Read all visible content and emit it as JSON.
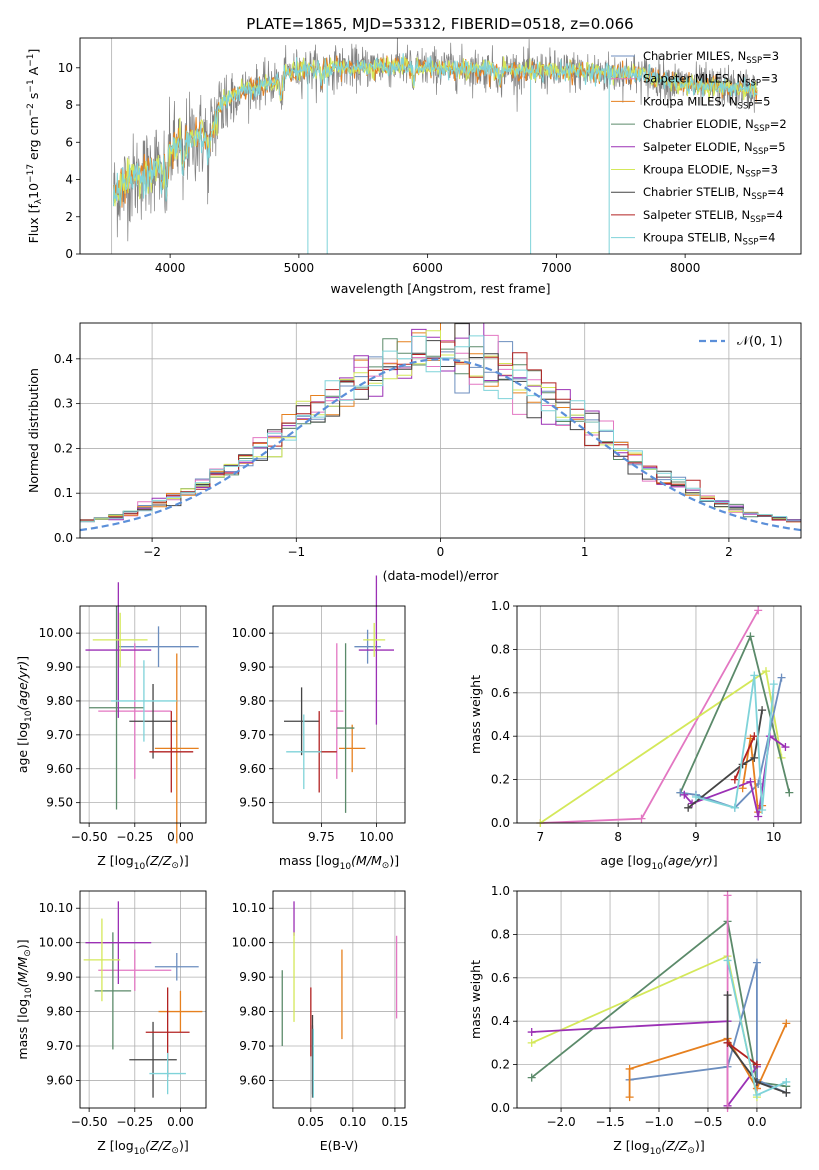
{
  "figure": {
    "title": "PLATE=1865, MJD=53312, FIBERID=0518, z=0.066"
  },
  "colors": {
    "chabrier_miles": "#6c8ebf",
    "salpeter_miles": "#e377c2",
    "kroupa_miles": "#e6801f",
    "chabrier_elodie": "#5b8a6a",
    "salpeter_elodie": "#9b30b5",
    "kroupa_elodie": "#d4e85a",
    "chabrier_stelib": "#444444",
    "salpeter_stelib": "#b22222",
    "kroupa_stelib": "#7fd3d9",
    "data": "#808080"
  },
  "chart_data": [
    {
      "id": "spectrum",
      "type": "line",
      "xlabel": "wavelength [Angstrom, rest frame]",
      "ylabel_parts": [
        "Flux [f",
        "λ",
        "10",
        "−17",
        " erg cm",
        "−2",
        " s",
        "−1",
        " A",
        "−1",
        "]"
      ],
      "xlim": [
        3300,
        8900
      ],
      "ylim": [
        0,
        11.6
      ],
      "xticks": [
        4000,
        5000,
        6000,
        7000,
        8000
      ],
      "yticks": [
        0,
        2,
        4,
        6,
        8,
        10
      ],
      "legend_position": "top-right",
      "legend": [
        {
          "model": "Chabrier MILES, N",
          "n": 3,
          "color_key": "chabrier_miles"
        },
        {
          "model": "Salpeter MILES, N",
          "n": 3,
          "color_key": "salpeter_miles"
        },
        {
          "model": "Kroupa MILES, N",
          "n": 5,
          "color_key": "kroupa_miles"
        },
        {
          "model": "Chabrier ELODIE, N",
          "n": 2,
          "color_key": "chabrier_elodie"
        },
        {
          "model": "Salpeter ELODIE, N",
          "n": 5,
          "color_key": "salpeter_elodie"
        },
        {
          "model": "Kroupa ELODIE, N",
          "n": 3,
          "color_key": "kroupa_elodie"
        },
        {
          "model": "Chabrier STELIB, N",
          "n": 4,
          "color_key": "chabrier_stelib"
        },
        {
          "model": "Salpeter STELIB, N",
          "n": 4,
          "color_key": "salpeter_stelib"
        },
        {
          "model": "Kroupa STELIB, N",
          "n": 4,
          "color_key": "kroupa_stelib"
        }
      ],
      "legend_subscript": "SSP",
      "continuum": [
        [
          3560,
          3.2
        ],
        [
          3700,
          4.0
        ],
        [
          3800,
          4.3
        ],
        [
          3900,
          4.9
        ],
        [
          4000,
          5.5
        ],
        [
          4100,
          6.0
        ],
        [
          4200,
          6.2
        ],
        [
          4300,
          6.4
        ],
        [
          4400,
          8.0
        ],
        [
          4500,
          8.6
        ],
        [
          4600,
          8.9
        ],
        [
          4700,
          9.0
        ],
        [
          4800,
          9.2
        ],
        [
          4900,
          9.7
        ],
        [
          5000,
          9.9
        ],
        [
          5200,
          10.0
        ],
        [
          5400,
          10.0
        ],
        [
          5600,
          10.1
        ],
        [
          5800,
          10.1
        ],
        [
          6000,
          10.0
        ],
        [
          6200,
          10.0
        ],
        [
          6400,
          9.9
        ],
        [
          6600,
          9.9
        ],
        [
          6800,
          9.8
        ],
        [
          7000,
          9.8
        ],
        [
          7200,
          9.8
        ],
        [
          7400,
          9.7
        ],
        [
          7600,
          9.7
        ],
        [
          7800,
          9.4
        ],
        [
          8000,
          9.1
        ],
        [
          8200,
          9.0
        ],
        [
          8400,
          8.9
        ],
        [
          8560,
          8.8
        ]
      ],
      "dips": [
        [
          3934,
          2.0
        ],
        [
          3969,
          2.5
        ],
        [
          4101,
          2.0
        ],
        [
          4300,
          1.5
        ],
        [
          4861,
          1.5
        ],
        [
          5175,
          1.0
        ],
        [
          5890,
          1.0
        ],
        [
          6563,
          1.0
        ]
      ],
      "spikes": [
        [
          5070,
          0
        ],
        [
          5220,
          0
        ],
        [
          6800,
          0
        ],
        [
          7410,
          0
        ]
      ]
    },
    {
      "id": "residuals",
      "type": "histogram",
      "xlabel": "(data-model)/error",
      "ylabel": "Normed distribution",
      "xlim": [
        -2.5,
        2.5
      ],
      "ylim": [
        0,
        0.48
      ],
      "xticks": [
        -2,
        -1,
        0,
        1,
        2
      ],
      "yticks": [
        0,
        0.1,
        0.2,
        0.3,
        0.4
      ],
      "bin_width": 0.1,
      "legend_position": "top-right",
      "normal_label": "𝒩(0, 1)",
      "normal_color": "#5b8fd9"
    },
    {
      "id": "age_vs_Z",
      "type": "errorbar",
      "xlabel_main": "Z [log",
      "xlabel_sub": "10",
      "xlabel_rest": "(Z/Z",
      "xlabel_end": ")]",
      "ylabel": "age  [log10(age/yr)]",
      "xlim": [
        -0.55,
        0.14
      ],
      "ylim": [
        9.44,
        10.08
      ],
      "xticks": [
        -0.5,
        -0.25,
        0.0
      ],
      "xtick_labels": [
        "−0.50",
        "−0.25",
        "0.00"
      ],
      "yticks": [
        9.5,
        9.6,
        9.7,
        9.8,
        9.9,
        10.0
      ],
      "points": [
        {
          "c": "chabrier_miles",
          "x": -0.12,
          "xerr": 0.22,
          "y": 9.96,
          "yerr": 0.06
        },
        {
          "c": "salpeter_miles",
          "x": -0.25,
          "xerr": 0.2,
          "y": 9.77,
          "yerr": 0.2
        },
        {
          "c": "kroupa_miles",
          "x": -0.02,
          "xerr": 0.12,
          "y": 9.66,
          "yerr": 0.28
        },
        {
          "c": "chabrier_elodie",
          "x": -0.35,
          "xerr": 0.15,
          "y": 9.78,
          "yerr": 0.3
        },
        {
          "c": "salpeter_elodie",
          "x": -0.34,
          "xerr": 0.18,
          "y": 9.95,
          "yerr": 0.2
        },
        {
          "c": "kroupa_elodie",
          "x": -0.33,
          "xerr": 0.15,
          "y": 9.98,
          "yerr": 0.08
        },
        {
          "c": "chabrier_stelib",
          "x": -0.15,
          "xerr": 0.13,
          "y": 9.74,
          "yerr": 0.11
        },
        {
          "c": "salpeter_stelib",
          "x": -0.05,
          "xerr": 0.12,
          "y": 9.65,
          "yerr": 0.12
        },
        {
          "c": "kroupa_stelib",
          "x": -0.2,
          "xerr": 0.18,
          "y": 9.8,
          "yerr": 0.12
        }
      ]
    },
    {
      "id": "age_vs_mass",
      "type": "errorbar",
      "xlabel_main": "mass [log",
      "xlabel_sub": "10",
      "xlabel_rest": "(M/M",
      "xlabel_end": ")]",
      "ylabel": "",
      "xlim": [
        9.53,
        10.13
      ],
      "ylim": [
        9.44,
        10.08
      ],
      "xticks": [
        9.75,
        10.0
      ],
      "xtick_labels": [
        "9.75",
        "10.00"
      ],
      "yticks": [
        9.5,
        9.6,
        9.7,
        9.8,
        9.9,
        10.0
      ],
      "points": [
        {
          "c": "chabrier_miles",
          "x": 9.96,
          "xerr": 0.06,
          "y": 9.96,
          "yerr": 0.05
        },
        {
          "c": "salpeter_miles",
          "x": 9.82,
          "xerr": 0.03,
          "y": 9.77,
          "yerr": 0.2
        },
        {
          "c": "kroupa_miles",
          "x": 9.89,
          "xerr": 0.06,
          "y": 9.66,
          "yerr": 0.07
        },
        {
          "c": "chabrier_elodie",
          "x": 9.86,
          "xerr": 0.04,
          "y": 9.72,
          "yerr": 0.25
        },
        {
          "c": "salpeter_elodie",
          "x": 10.0,
          "xerr": 0.08,
          "y": 9.95,
          "yerr": 0.22
        },
        {
          "c": "kroupa_elodie",
          "x": 9.99,
          "xerr": 0.05,
          "y": 9.98,
          "yerr": 0.05
        },
        {
          "c": "chabrier_stelib",
          "x": 9.66,
          "xerr": 0.08,
          "y": 9.74,
          "yerr": 0.1
        },
        {
          "c": "salpeter_stelib",
          "x": 9.74,
          "xerr": 0.08,
          "y": 9.65,
          "yerr": 0.12
        },
        {
          "c": "kroupa_stelib",
          "x": 9.67,
          "xerr": 0.08,
          "y": 9.65,
          "yerr": 0.11
        }
      ]
    },
    {
      "id": "mass_weight_vs_age",
      "type": "line",
      "xlabel": "age  [log10(age/yr)]",
      "ylabel": "mass weight",
      "xlim": [
        6.7,
        10.35
      ],
      "ylim": [
        0,
        1.0
      ],
      "xticks": [
        7,
        8,
        9,
        10
      ],
      "yticks": [
        0.0,
        0.2,
        0.4,
        0.6,
        0.8,
        1.0
      ],
      "series": [
        {
          "c": "salpeter_miles",
          "x": [
            7.0,
            8.3,
            9.8
          ],
          "y": [
            0.0,
            0.02,
            0.98
          ]
        },
        {
          "c": "kroupa_elodie",
          "x": [
            7.0,
            9.9,
            10.1
          ],
          "y": [
            0.0,
            0.7,
            0.3
          ]
        },
        {
          "c": "chabrier_elodie",
          "x": [
            8.8,
            9.7,
            10.2
          ],
          "y": [
            0.14,
            0.86,
            0.14
          ]
        },
        {
          "c": "chabrier_miles",
          "x": [
            8.8,
            9.0,
            9.5,
            9.8,
            10.1
          ],
          "y": [
            0.14,
            0.13,
            0.07,
            0.18,
            0.67
          ]
        },
        {
          "c": "kroupa_miles",
          "x": [
            9.6,
            9.7,
            9.8,
            9.85
          ],
          "y": [
            0.16,
            0.39,
            0.05,
            0.08
          ]
        },
        {
          "c": "salpeter_elodie",
          "x": [
            8.85,
            8.95,
            9.7,
            9.8,
            9.95,
            10.15
          ],
          "y": [
            0.13,
            0.09,
            0.19,
            0.03,
            0.4,
            0.35
          ]
        },
        {
          "c": "chabrier_stelib",
          "x": [
            8.9,
            9.6,
            9.75,
            9.85
          ],
          "y": [
            0.07,
            0.27,
            0.3,
            0.52
          ]
        },
        {
          "c": "salpeter_stelib",
          "x": [
            9.5,
            9.75
          ],
          "y": [
            0.2,
            0.4
          ]
        },
        {
          "c": "kroupa_stelib",
          "x": [
            9.0,
            9.5,
            9.75,
            9.85,
            10.0
          ],
          "y": [
            0.12,
            0.07,
            0.68,
            0.06,
            0.64
          ]
        }
      ]
    },
    {
      "id": "mass_vs_Z",
      "type": "errorbar",
      "xlabel_main": "Z [log",
      "xlabel_sub": "10",
      "xlabel_rest": "(Z/Z",
      "xlabel_end": ")]",
      "ylabel": "mass [log10(M/M⊙)]",
      "xlim": [
        -0.55,
        0.14
      ],
      "ylim": [
        9.52,
        10.15
      ],
      "xticks": [
        -0.5,
        -0.25,
        0.0
      ],
      "xtick_labels": [
        "−0.50",
        "−0.25",
        "0.00"
      ],
      "yticks": [
        9.6,
        9.7,
        9.8,
        9.9,
        10.0,
        10.1
      ],
      "points": [
        {
          "c": "chabrier_miles",
          "x": -0.02,
          "xerr": 0.12,
          "y": 9.93,
          "yerr": 0.04
        },
        {
          "c": "salpeter_miles",
          "x": -0.25,
          "xerr": 0.2,
          "y": 9.92,
          "yerr": 0.06
        },
        {
          "c": "kroupa_miles",
          "x": 0.0,
          "xerr": 0.12,
          "y": 9.8,
          "yerr": 0.06
        },
        {
          "c": "chabrier_elodie",
          "x": -0.37,
          "xerr": 0.1,
          "y": 9.86,
          "yerr": 0.17
        },
        {
          "c": "salpeter_elodie",
          "x": -0.34,
          "xerr": 0.18,
          "y": 10.0,
          "yerr": 0.12
        },
        {
          "c": "kroupa_elodie",
          "x": -0.43,
          "xerr": 0.1,
          "y": 9.95,
          "yerr": 0.12
        },
        {
          "c": "chabrier_stelib",
          "x": -0.15,
          "xerr": 0.13,
          "y": 9.66,
          "yerr": 0.11
        },
        {
          "c": "salpeter_stelib",
          "x": -0.07,
          "xerr": 0.12,
          "y": 9.74,
          "yerr": 0.13
        },
        {
          "c": "kroupa_stelib",
          "x": -0.07,
          "xerr": 0.1,
          "y": 9.62,
          "yerr": 0.06
        }
      ]
    },
    {
      "id": "mass_vs_EBV",
      "type": "errorbar",
      "xlabel_main": "E(B-V)",
      "xlabel_sub": "",
      "xlabel_rest": "",
      "xlabel_end": "",
      "ylabel": "",
      "xlim": [
        0.005,
        0.162
      ],
      "ylim": [
        9.52,
        10.15
      ],
      "xticks": [
        0.05,
        0.1,
        0.15
      ],
      "xtick_labels": [
        "0.05",
        "0.10",
        "0.15"
      ],
      "yticks": [
        9.6,
        9.7,
        9.8,
        9.9,
        10.0,
        10.1
      ],
      "points": [
        {
          "c": "chabrier_miles",
          "x": 0.052,
          "xerr": 0,
          "y": 9.66,
          "yerr": 0.1
        },
        {
          "c": "salpeter_miles",
          "x": 0.152,
          "xerr": 0,
          "y": 9.9,
          "yerr": 0.12
        },
        {
          "c": "kroupa_miles",
          "x": 0.087,
          "xerr": 0,
          "y": 9.85,
          "yerr": 0.13
        },
        {
          "c": "chabrier_elodie",
          "x": 0.016,
          "xerr": 0,
          "y": 9.81,
          "yerr": 0.11
        },
        {
          "c": "salpeter_elodie",
          "x": 0.03,
          "xerr": 0,
          "y": 10.07,
          "yerr": 0.05
        },
        {
          "c": "kroupa_elodie",
          "x": 0.03,
          "xerr": 0,
          "y": 9.9,
          "yerr": 0.13
        },
        {
          "c": "chabrier_stelib",
          "x": 0.052,
          "xerr": 0,
          "y": 9.67,
          "yerr": 0.12
        },
        {
          "c": "salpeter_stelib",
          "x": 0.05,
          "xerr": 0,
          "y": 9.77,
          "yerr": 0.1
        },
        {
          "c": "kroupa_stelib",
          "x": 0.053,
          "xerr": 0,
          "y": 9.65,
          "yerr": 0.1
        }
      ]
    },
    {
      "id": "mass_weight_vs_Z",
      "type": "line",
      "xlabel": "Z [log10(Z/Z⊙)]",
      "ylabel": "mass weight",
      "xlim": [
        -2.45,
        0.45
      ],
      "ylim": [
        0,
        1.0
      ],
      "xticks": [
        -2.0,
        -1.5,
        -1.0,
        -0.5,
        0.0
      ],
      "xtick_labels": [
        "−2.0",
        "−1.5",
        "−1.0",
        "−0.5",
        "0.0"
      ],
      "yticks": [
        0.0,
        0.2,
        0.4,
        0.6,
        0.8,
        1.0
      ],
      "series": [
        {
          "c": "chabrier_elodie",
          "x": [
            -2.3,
            -0.3,
            0.0,
            0.3
          ],
          "y": [
            0.14,
            0.86,
            0.12,
            0.1
          ]
        },
        {
          "c": "kroupa_elodie",
          "x": [
            -2.3,
            -0.3,
            0.0
          ],
          "y": [
            0.3,
            0.7,
            0.05
          ]
        },
        {
          "c": "salpeter_elodie",
          "x": [
            -2.3,
            -0.3,
            -0.3,
            0.0,
            0.0
          ],
          "y": [
            0.35,
            0.4,
            0.01,
            0.19,
            0.09
          ]
        },
        {
          "c": "chabrier_miles",
          "x": [
            -1.3,
            -0.3,
            0.0,
            0.0,
            0.3
          ],
          "y": [
            0.13,
            0.19,
            0.67,
            0.13,
            0.07
          ]
        },
        {
          "c": "kroupa_miles",
          "x": [
            -1.3,
            -1.3,
            -0.3,
            0.0,
            0.3
          ],
          "y": [
            0.05,
            0.18,
            0.32,
            0.09,
            0.39
          ]
        },
        {
          "c": "salpeter_miles",
          "x": [
            -0.3,
            -0.3
          ],
          "y": [
            0.0,
            0.98
          ]
        },
        {
          "c": "chabrier_stelib",
          "x": [
            -0.3,
            -0.3,
            0.0,
            0.3
          ],
          "y": [
            0.52,
            0.3,
            0.12,
            0.07
          ]
        },
        {
          "c": "salpeter_stelib",
          "x": [
            -0.3,
            0.0
          ],
          "y": [
            0.3,
            0.2
          ]
        },
        {
          "c": "kroupa_stelib",
          "x": [
            -0.3,
            0.0,
            0.3
          ],
          "y": [
            0.68,
            0.06,
            0.12
          ]
        }
      ]
    }
  ]
}
